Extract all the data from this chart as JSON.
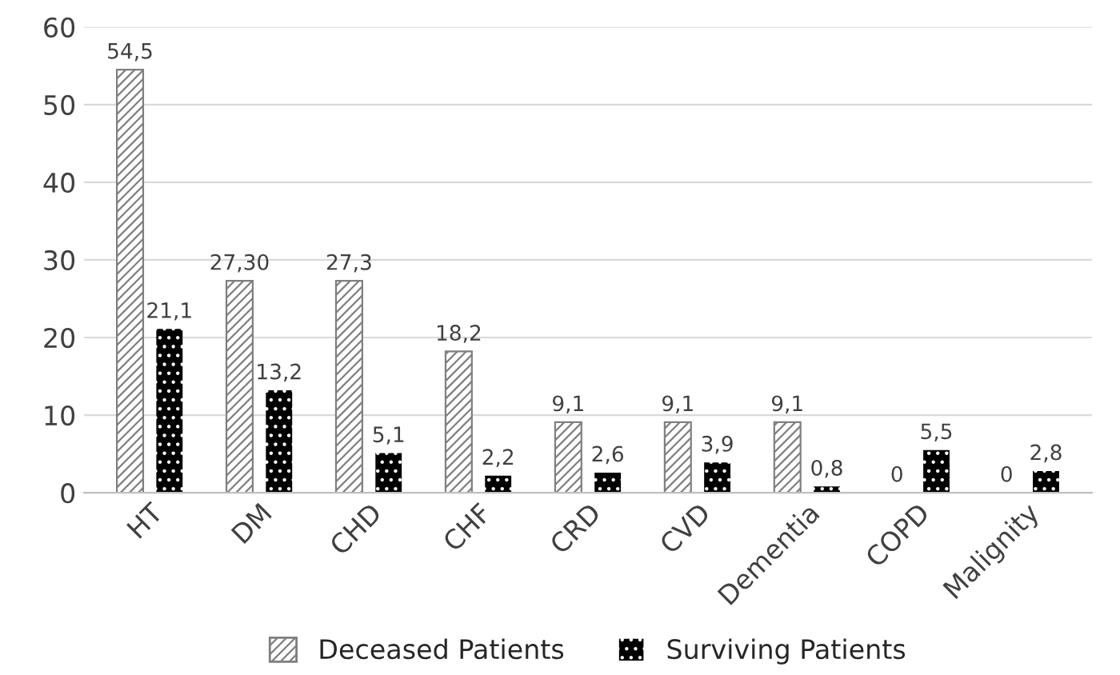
{
  "chart_data": {
    "type": "bar",
    "categories": [
      "HT",
      "DM",
      "CHD",
      "CHF",
      "CRD",
      "CVD",
      "Dementia",
      "COPD",
      "Malignity"
    ],
    "series": [
      {
        "name": "Deceased Patients",
        "color": "#7f7f7f",
        "values": [
          54.5,
          27.3,
          27.3,
          18.2,
          9.1,
          9.1,
          9.1,
          0,
          0
        ],
        "value_labels": [
          "54,5",
          "27,30",
          "27,3",
          "18,2",
          "9,1",
          "9,1",
          "9,1",
          "0",
          "0"
        ]
      },
      {
        "name": "Surviving Patients",
        "color": "#000000",
        "values": [
          21.1,
          13.2,
          5.1,
          2.2,
          2.6,
          3.9,
          0.8,
          5.5,
          2.8
        ],
        "value_labels": [
          "21,1",
          "13,2",
          "5,1",
          "2,2",
          "2,6",
          "3,9",
          "0,8",
          "5,5",
          "2,8"
        ]
      }
    ],
    "ylim": [
      0,
      60
    ],
    "yticks": [
      0,
      10,
      20,
      30,
      40,
      50,
      60
    ],
    "grid": "y",
    "legend": "bottom"
  }
}
